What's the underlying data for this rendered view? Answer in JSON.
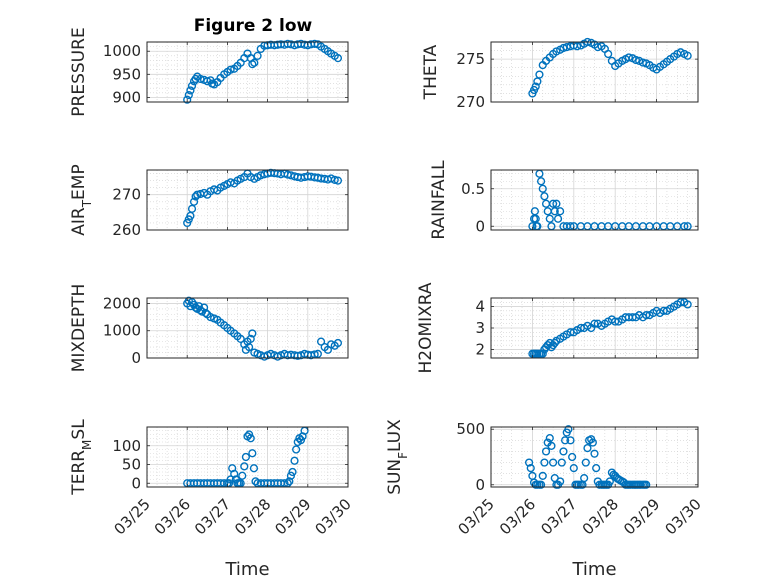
{
  "figure_title": "Figure 2 low",
  "marker_color": "#0072bd",
  "chart_data": {
    "type": "scatter",
    "title": "Figure 2 low",
    "xlabel": "Time",
    "x_tick_labels": [
      "03/25",
      "03/26",
      "03/27",
      "03/28",
      "03/29",
      "03/30"
    ],
    "x_range_days": [
      0,
      5
    ],
    "panels": [
      {
        "id": "pressure",
        "ylabel": "PRESSURE",
        "ylim": [
          890,
          1020
        ],
        "yticks": [
          900,
          950,
          1000
        ],
        "ytick_labels": [
          "900",
          "950",
          "1000"
        ],
        "x": [
          1.0,
          1.04,
          1.08,
          1.12,
          1.17,
          1.21,
          1.25,
          1.33,
          1.42,
          1.5,
          1.58,
          1.62,
          1.67,
          1.75,
          1.83,
          1.92,
          2.0,
          2.08,
          2.17,
          2.25,
          2.33,
          2.42,
          2.5,
          2.58,
          2.62,
          2.67,
          2.75,
          2.83,
          2.92,
          3.0,
          3.08,
          3.17,
          3.25,
          3.33,
          3.42,
          3.5,
          3.58,
          3.67,
          3.75,
          3.83,
          3.92,
          4.0,
          4.08,
          4.17,
          4.25,
          4.33,
          4.42,
          4.5,
          4.58,
          4.67,
          4.75
        ],
        "y": [
          895,
          905,
          915,
          925,
          935,
          940,
          945,
          940,
          938,
          935,
          937,
          930,
          928,
          933,
          942,
          950,
          955,
          960,
          962,
          968,
          975,
          985,
          995,
          985,
          972,
          975,
          990,
          1005,
          1012,
          1013,
          1014,
          1013,
          1014,
          1015,
          1014,
          1016,
          1015,
          1013,
          1015,
          1016,
          1014,
          1013,
          1015,
          1016,
          1015,
          1010,
          1005,
          1000,
          995,
          990,
          985
        ]
      },
      {
        "id": "theta",
        "ylabel": "THETA",
        "ylim": [
          270,
          277
        ],
        "yticks": [
          270,
          275
        ],
        "ytick_labels": [
          "270",
          "275"
        ],
        "x": [
          1.0,
          1.04,
          1.08,
          1.12,
          1.17,
          1.25,
          1.33,
          1.42,
          1.5,
          1.58,
          1.67,
          1.75,
          1.83,
          1.92,
          2.0,
          2.08,
          2.17,
          2.25,
          2.33,
          2.42,
          2.5,
          2.58,
          2.67,
          2.75,
          2.83,
          2.92,
          3.0,
          3.08,
          3.17,
          3.25,
          3.33,
          3.42,
          3.5,
          3.58,
          3.67,
          3.75,
          3.83,
          3.92,
          4.0,
          4.08,
          4.17,
          4.25,
          4.33,
          4.42,
          4.5,
          4.58,
          4.67,
          4.75
        ],
        "y": [
          271.0,
          271.4,
          271.8,
          272.4,
          273.2,
          274.3,
          274.8,
          275.2,
          275.6,
          275.9,
          276.1,
          276.3,
          276.4,
          276.5,
          276.6,
          276.5,
          276.6,
          276.8,
          277.0,
          276.9,
          276.7,
          276.4,
          276.5,
          276.2,
          275.6,
          274.8,
          274.2,
          274.5,
          274.8,
          275.0,
          275.2,
          275.1,
          274.9,
          274.8,
          274.6,
          274.5,
          274.3,
          274.0,
          273.8,
          274.1,
          274.4,
          274.7,
          275.0,
          275.3,
          275.6,
          275.8,
          275.6,
          275.4
        ]
      },
      {
        "id": "airtemp",
        "ylabel": "AIR_TEMP",
        "ylim": [
          260,
          277
        ],
        "yticks": [
          260,
          270
        ],
        "ytick_labels": [
          "260",
          "270"
        ],
        "x": [
          1.0,
          1.04,
          1.08,
          1.12,
          1.17,
          1.21,
          1.25,
          1.33,
          1.42,
          1.5,
          1.58,
          1.67,
          1.75,
          1.83,
          1.92,
          2.0,
          2.08,
          2.17,
          2.25,
          2.33,
          2.42,
          2.5,
          2.58,
          2.67,
          2.75,
          2.83,
          2.92,
          3.0,
          3.08,
          3.17,
          3.25,
          3.33,
          3.42,
          3.5,
          3.58,
          3.67,
          3.75,
          3.83,
          3.92,
          4.0,
          4.08,
          4.17,
          4.25,
          4.33,
          4.42,
          4.5,
          4.58,
          4.67,
          4.75
        ],
        "y": [
          262,
          263,
          264,
          266,
          268,
          269.5,
          270,
          270.2,
          270.5,
          270,
          271,
          271.5,
          271.2,
          272,
          272.5,
          273,
          273.5,
          273.2,
          274,
          274.5,
          275,
          276,
          275,
          274.5,
          275,
          275.5,
          275.8,
          276,
          276.2,
          276.1,
          276,
          275.8,
          276,
          275.7,
          275.5,
          275.2,
          275,
          274.8,
          275,
          275.2,
          275.1,
          274.9,
          274.8,
          274.6,
          274.5,
          274.3,
          274.6,
          274.2,
          274
        ]
      },
      {
        "id": "rainfall",
        "ylabel": "RAINFALL",
        "ylim": [
          -0.05,
          0.75
        ],
        "yticks": [
          0,
          0.5
        ],
        "ytick_labels": [
          "0",
          "0.5"
        ],
        "x": [
          1.0,
          1.04,
          1.06,
          1.08,
          1.1,
          1.12,
          1.17,
          1.21,
          1.25,
          1.29,
          1.33,
          1.37,
          1.42,
          1.46,
          1.5,
          1.54,
          1.58,
          1.62,
          1.67,
          1.75,
          1.83,
          1.92,
          2.0,
          2.17,
          2.33,
          2.5,
          2.67,
          2.83,
          3.0,
          3.17,
          3.33,
          3.5,
          3.67,
          3.83,
          4.0,
          4.17,
          4.33,
          4.5,
          4.67,
          4.75
        ],
        "y": [
          0,
          0.1,
          0.2,
          0.1,
          0,
          0,
          0.7,
          0.6,
          0.5,
          0.4,
          0.3,
          0.2,
          0.1,
          0,
          0.3,
          0.2,
          0.3,
          0.1,
          0.2,
          0,
          0,
          0,
          0,
          0,
          0,
          0,
          0,
          0,
          0,
          0,
          0,
          0,
          0,
          0,
          0,
          0,
          0,
          0,
          0,
          0
        ]
      },
      {
        "id": "mixdepth",
        "ylabel": "MIXDEPTH",
        "ylim": [
          0,
          2200
        ],
        "yticks": [
          0,
          1000,
          2000
        ],
        "ytick_labels": [
          "0",
          "1000",
          "2000"
        ],
        "x": [
          1.0,
          1.04,
          1.08,
          1.12,
          1.17,
          1.21,
          1.25,
          1.29,
          1.33,
          1.37,
          1.42,
          1.46,
          1.5,
          1.58,
          1.67,
          1.75,
          1.83,
          1.92,
          2.0,
          2.08,
          2.17,
          2.25,
          2.33,
          2.42,
          2.46,
          2.5,
          2.54,
          2.58,
          2.62,
          2.67,
          2.75,
          2.83,
          2.92,
          3.0,
          3.08,
          3.17,
          3.25,
          3.33,
          3.42,
          3.5,
          3.58,
          3.67,
          3.75,
          3.83,
          3.92,
          4.0,
          4.08,
          4.17,
          4.25,
          4.33,
          4.42,
          4.5,
          4.58,
          4.67,
          4.75
        ],
        "y": [
          2000,
          2100,
          1900,
          2050,
          1950,
          1850,
          1800,
          1900,
          1750,
          1700,
          1850,
          1650,
          1600,
          1500,
          1450,
          1400,
          1300,
          1200,
          1100,
          1000,
          900,
          800,
          700,
          500,
          300,
          600,
          400,
          700,
          900,
          200,
          150,
          100,
          50,
          100,
          150,
          100,
          50,
          100,
          150,
          100,
          120,
          100,
          80,
          100,
          150,
          120,
          100,
          130,
          150,
          600,
          400,
          300,
          500,
          450,
          550
        ]
      },
      {
        "id": "h2omixra",
        "ylabel": "H2OMIXRA",
        "ylim": [
          1.6,
          4.4
        ],
        "yticks": [
          2,
          3,
          4
        ],
        "ytick_labels": [
          "2",
          "3",
          "4"
        ],
        "x": [
          1.0,
          1.04,
          1.08,
          1.12,
          1.17,
          1.21,
          1.25,
          1.29,
          1.33,
          1.37,
          1.42,
          1.46,
          1.5,
          1.54,
          1.58,
          1.67,
          1.75,
          1.83,
          1.92,
          2.0,
          2.08,
          2.17,
          2.25,
          2.33,
          2.42,
          2.5,
          2.58,
          2.67,
          2.75,
          2.83,
          2.92,
          3.0,
          3.08,
          3.17,
          3.25,
          3.33,
          3.42,
          3.5,
          3.58,
          3.67,
          3.75,
          3.83,
          3.92,
          4.0,
          4.08,
          4.17,
          4.25,
          4.33,
          4.42,
          4.5,
          4.58,
          4.67,
          4.75
        ],
        "y": [
          1.8,
          1.8,
          1.8,
          1.8,
          1.8,
          1.8,
          1.8,
          2.0,
          2.1,
          2.2,
          2.3,
          2.1,
          2.2,
          2.3,
          2.4,
          2.5,
          2.6,
          2.7,
          2.8,
          2.8,
          2.9,
          3.0,
          3.0,
          3.1,
          3.0,
          3.2,
          3.2,
          3.1,
          3.2,
          3.3,
          3.4,
          3.3,
          3.3,
          3.4,
          3.5,
          3.5,
          3.5,
          3.5,
          3.6,
          3.5,
          3.6,
          3.6,
          3.7,
          3.8,
          3.7,
          3.8,
          3.8,
          3.9,
          4.0,
          4.1,
          4.2,
          4.2,
          4.1
        ]
      },
      {
        "id": "terrmsl",
        "ylabel": "TERR_MSL",
        "ylim": [
          -10,
          150
        ],
        "yticks": [
          0,
          50,
          100
        ],
        "ytick_labels": [
          "0",
          "50",
          "100"
        ],
        "x": [
          1.0,
          1.08,
          1.17,
          1.25,
          1.33,
          1.42,
          1.5,
          1.58,
          1.67,
          1.75,
          1.83,
          1.92,
          2.0,
          2.04,
          2.08,
          2.12,
          2.17,
          2.21,
          2.25,
          2.29,
          2.33,
          2.37,
          2.42,
          2.46,
          2.5,
          2.54,
          2.58,
          2.62,
          2.66,
          2.7,
          2.75,
          2.83,
          2.92,
          3.0,
          3.08,
          3.17,
          3.25,
          3.33,
          3.42,
          3.5,
          3.54,
          3.58,
          3.62,
          3.67,
          3.71,
          3.75,
          3.79,
          3.83,
          3.87,
          3.92
        ],
        "y": [
          0,
          0,
          0,
          0,
          0,
          0,
          0,
          0,
          0,
          0,
          0,
          0,
          0,
          0,
          10,
          40,
          25,
          10,
          0,
          0,
          0,
          20,
          45,
          70,
          125,
          130,
          120,
          80,
          40,
          5,
          0,
          0,
          0,
          0,
          0,
          0,
          0,
          0,
          0,
          0,
          5,
          20,
          30,
          60,
          90,
          110,
          120,
          115,
          125,
          140
        ]
      },
      {
        "id": "sunflux",
        "ylabel": "SUN_FLUX",
        "ylim": [
          -20,
          520
        ],
        "yticks": [
          0,
          500
        ],
        "ytick_labels": [
          "0",
          "500"
        ],
        "x": [
          0.92,
          0.96,
          1.0,
          1.04,
          1.08,
          1.12,
          1.17,
          1.21,
          1.25,
          1.29,
          1.33,
          1.37,
          1.42,
          1.46,
          1.5,
          1.54,
          1.58,
          1.62,
          1.67,
          1.71,
          1.75,
          1.79,
          1.83,
          1.87,
          1.92,
          1.96,
          2.0,
          2.04,
          2.08,
          2.12,
          2.17,
          2.21,
          2.25,
          2.29,
          2.33,
          2.37,
          2.42,
          2.46,
          2.5,
          2.54,
          2.58,
          2.62,
          2.67,
          2.71,
          2.75,
          2.79,
          2.83,
          2.87,
          2.92,
          2.96,
          3.0,
          3.04,
          3.08,
          3.12,
          3.17,
          3.21,
          3.25,
          3.29,
          3.33,
          3.37,
          3.42,
          3.46,
          3.5,
          3.54,
          3.58,
          3.62,
          3.67,
          3.71,
          3.75
        ],
        "y": [
          200,
          150,
          80,
          20,
          0,
          0,
          0,
          0,
          80,
          200,
          300,
          380,
          420,
          350,
          200,
          60,
          0,
          0,
          30,
          200,
          300,
          400,
          470,
          500,
          400,
          250,
          150,
          0,
          0,
          0,
          0,
          0,
          60,
          200,
          330,
          400,
          410,
          380,
          280,
          150,
          30,
          0,
          0,
          0,
          0,
          0,
          0,
          30,
          110,
          90,
          80,
          60,
          50,
          40,
          30,
          20,
          0,
          0,
          0,
          0,
          0,
          0,
          0,
          0,
          0,
          0,
          0,
          0,
          0
        ]
      }
    ]
  }
}
